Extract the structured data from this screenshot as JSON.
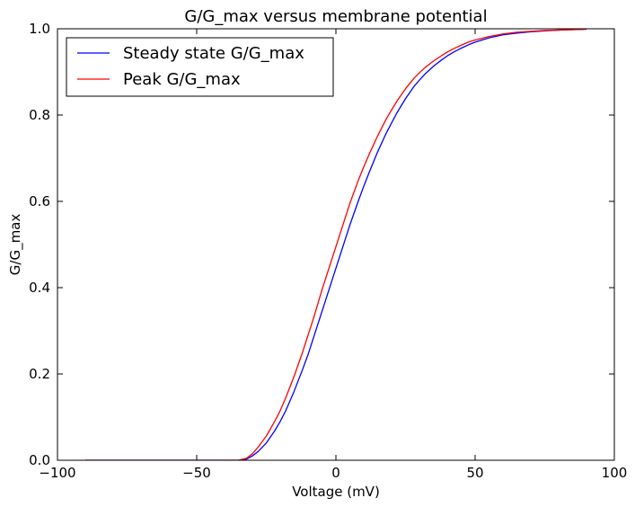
{
  "chart_data": {
    "type": "line",
    "title": "G/G_max versus membrane potential",
    "xlabel": "Voltage (mV)",
    "ylabel": "G/G_max",
    "xlim": [
      -100,
      100
    ],
    "ylim": [
      0.0,
      1.0
    ],
    "xticks": [
      -100,
      -50,
      0,
      50,
      100
    ],
    "xtick_labels": [
      "−100",
      "−50",
      "0",
      "50",
      "100"
    ],
    "yticks": [
      0.0,
      0.2,
      0.4,
      0.6,
      0.8,
      1.0
    ],
    "ytick_labels": [
      "0.0",
      "0.2",
      "0.4",
      "0.6",
      "0.8",
      "1.0"
    ],
    "grid": false,
    "legend_position": "top-left",
    "x": [
      -90,
      -80,
      -70,
      -60,
      -50,
      -45,
      -40,
      -35,
      -32,
      -30,
      -28,
      -25,
      -22,
      -20,
      -18,
      -15,
      -12,
      -10,
      -8,
      -5,
      -2,
      0,
      2,
      5,
      8,
      10,
      12,
      15,
      18,
      20,
      22,
      25,
      28,
      30,
      32,
      35,
      38,
      40,
      42,
      45,
      48,
      50,
      55,
      60,
      65,
      70,
      75,
      80,
      85,
      90
    ],
    "series": [
      {
        "name": "Steady state G/G_max",
        "color": "#0000ff",
        "values": [
          0,
          0,
          0,
          0,
          0,
          0,
          0,
          0,
          0.003,
          0.01,
          0.02,
          0.04,
          0.068,
          0.09,
          0.115,
          0.16,
          0.21,
          0.245,
          0.285,
          0.345,
          0.405,
          0.445,
          0.485,
          0.545,
          0.6,
          0.635,
          0.668,
          0.715,
          0.757,
          0.782,
          0.806,
          0.838,
          0.866,
          0.881,
          0.895,
          0.913,
          0.928,
          0.937,
          0.945,
          0.955,
          0.964,
          0.969,
          0.979,
          0.986,
          0.99,
          0.993,
          0.995,
          0.997,
          0.998,
          0.999
        ]
      },
      {
        "name": "Peak G/G_max",
        "color": "#ff0000",
        "values": [
          0,
          0,
          0,
          0,
          0,
          0,
          0,
          0,
          0.005,
          0.015,
          0.03,
          0.056,
          0.09,
          0.115,
          0.145,
          0.195,
          0.25,
          0.29,
          0.33,
          0.395,
          0.455,
          0.495,
          0.535,
          0.595,
          0.648,
          0.68,
          0.71,
          0.752,
          0.79,
          0.812,
          0.833,
          0.861,
          0.885,
          0.898,
          0.91,
          0.925,
          0.938,
          0.946,
          0.953,
          0.962,
          0.97,
          0.974,
          0.982,
          0.988,
          0.992,
          0.994,
          0.996,
          0.997,
          0.998,
          0.999
        ]
      }
    ]
  }
}
